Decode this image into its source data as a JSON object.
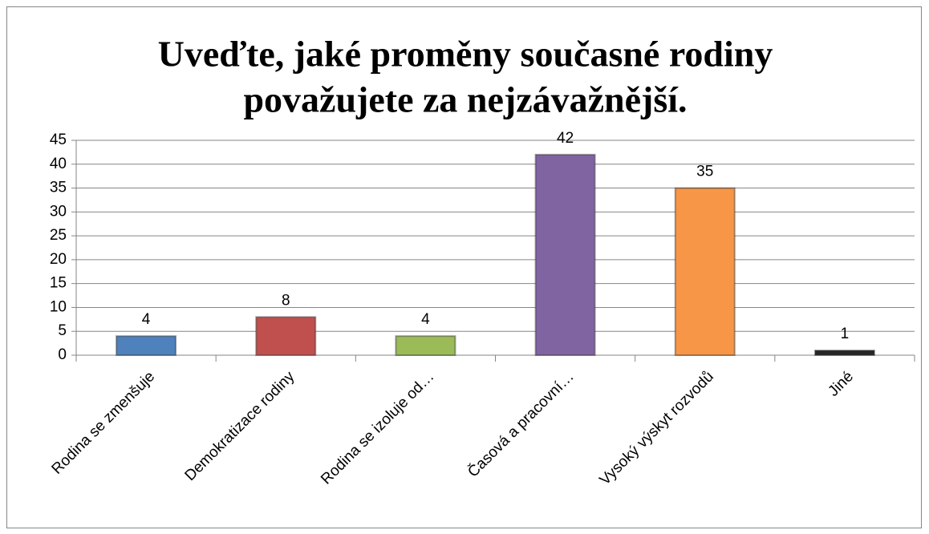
{
  "chart_data": {
    "type": "bar",
    "title": [
      "Uveďte, jaké proměny současné rodiny",
      "považujete za nejzávažnější."
    ],
    "categories": [
      "Rodina se zmenšuje",
      "Demokratizace rodiny",
      "Rodina se izoluje od…",
      "Časová a pracovní…",
      "Vysoký výskyt rozvodů",
      "Jiné"
    ],
    "values": [
      4,
      8,
      4,
      42,
      35,
      1
    ],
    "colors": [
      "#4f81bd",
      "#c0504d",
      "#9bbb59",
      "#8064a2",
      "#f79646",
      "#262626"
    ],
    "ylim": [
      0,
      45
    ],
    "yticks": [
      0,
      5,
      10,
      15,
      20,
      25,
      30,
      35,
      40,
      45
    ],
    "grid": true
  }
}
